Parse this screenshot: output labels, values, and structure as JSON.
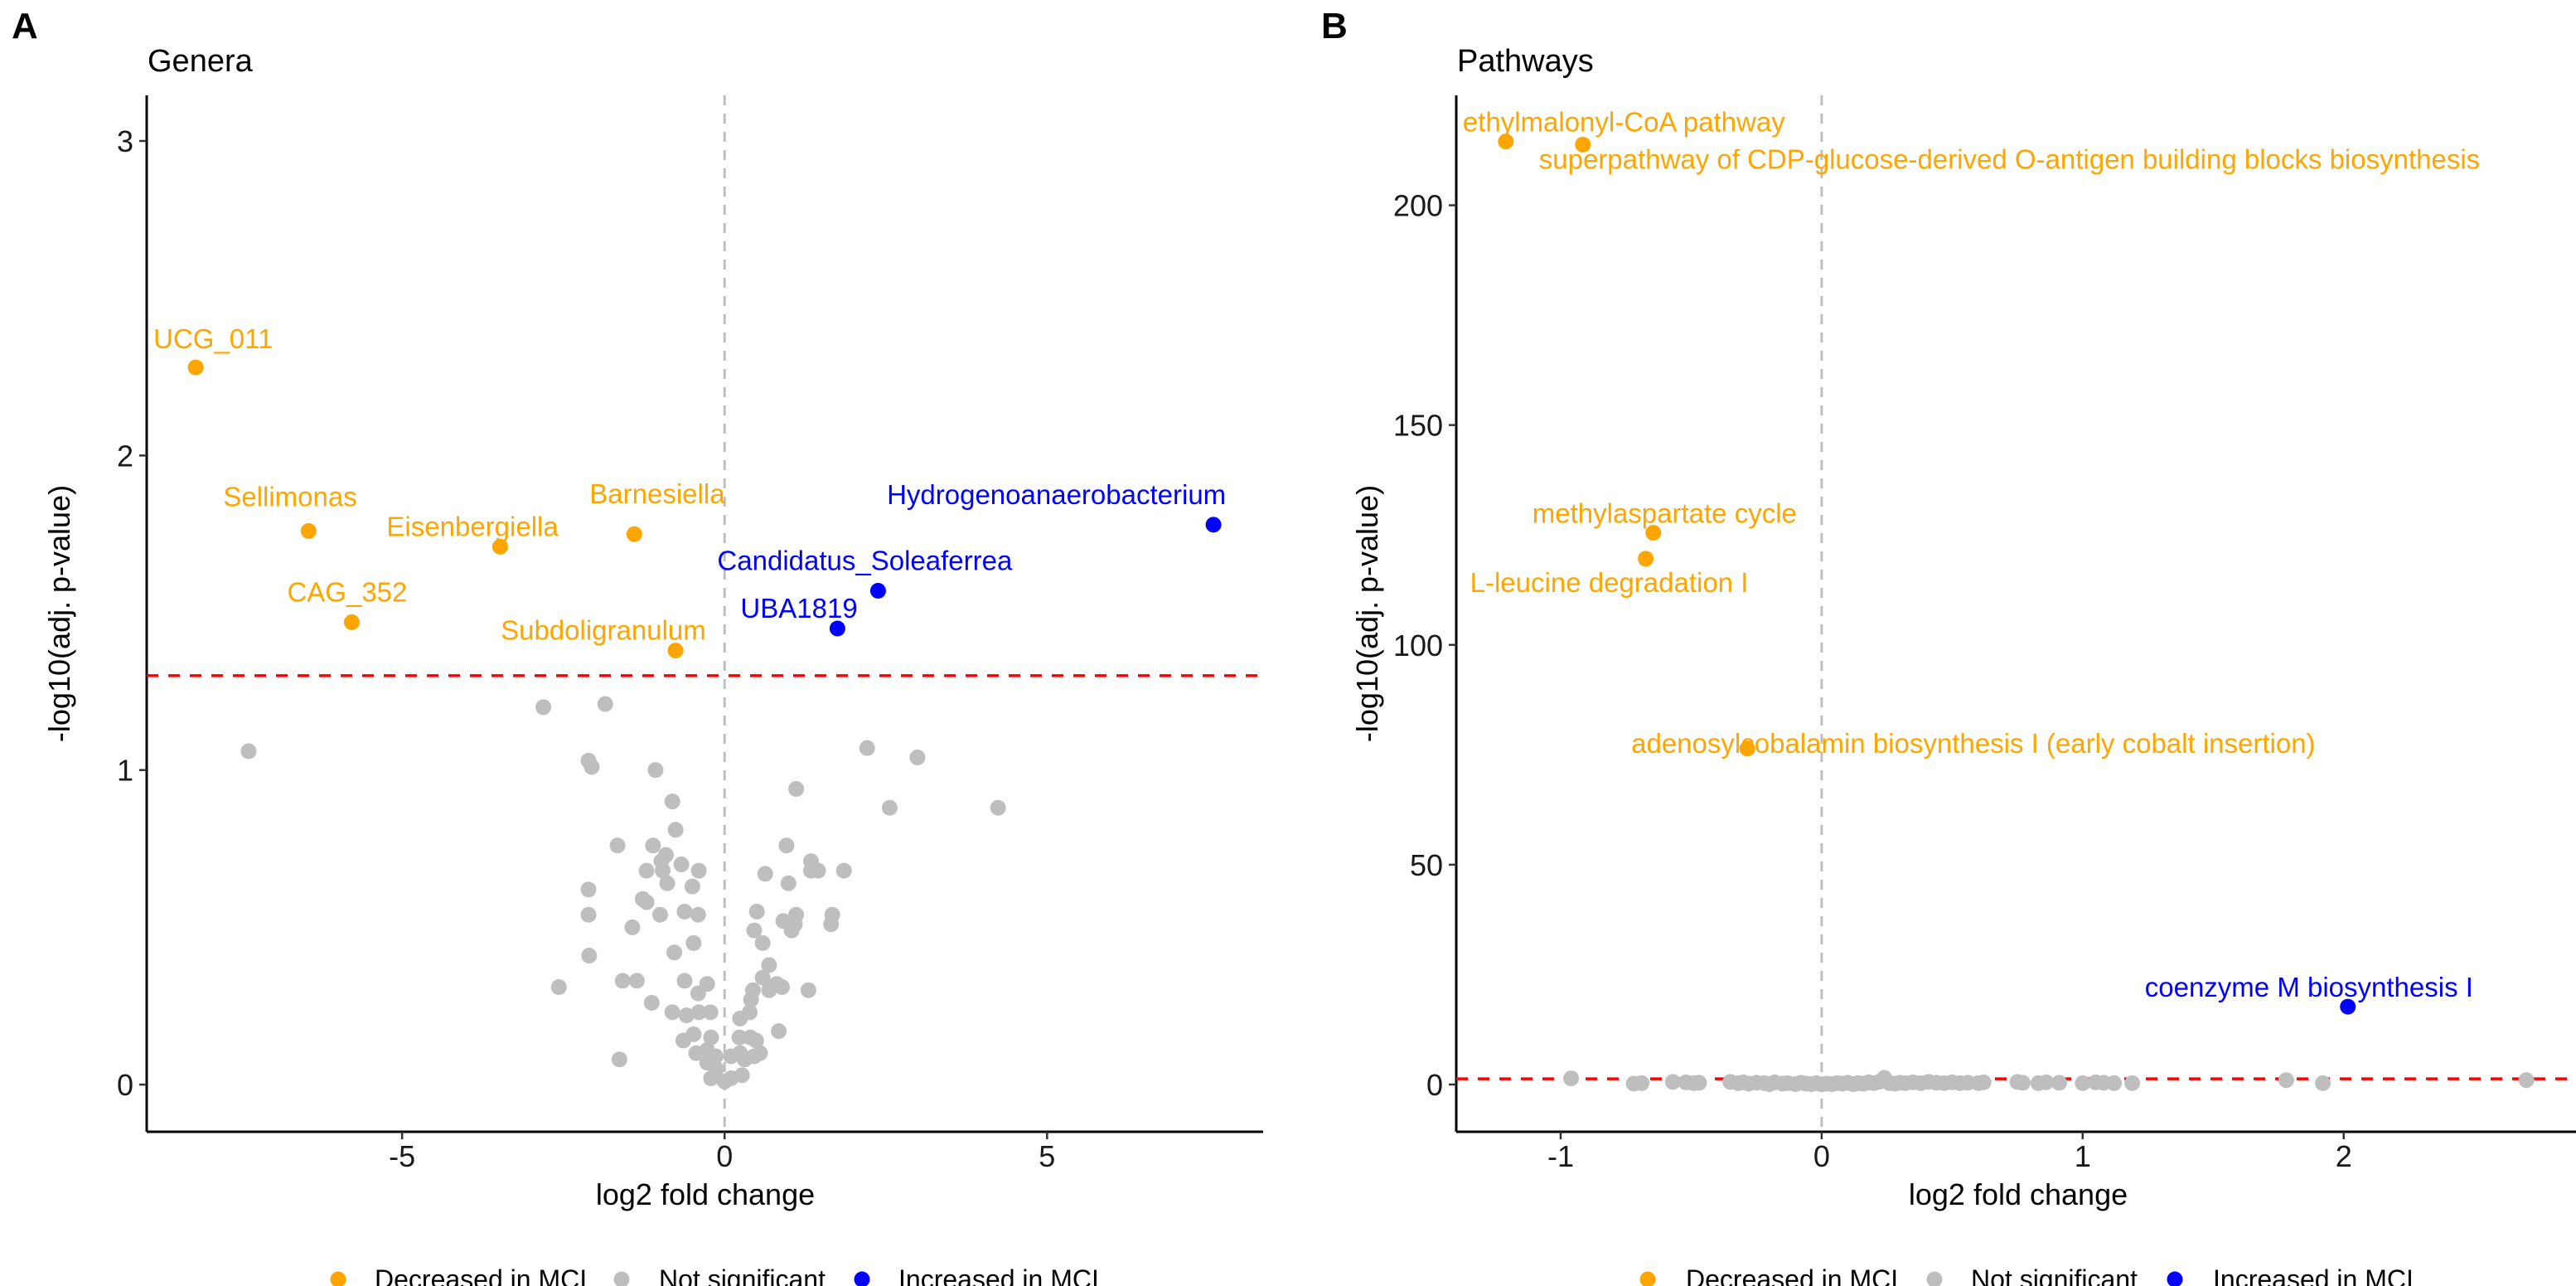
{
  "colors": {
    "decreased": "#FFA500",
    "not_significant": "#BEBEBE",
    "increased": "#0000FF",
    "threshold": "#FF0000",
    "zero_line": "#BEBEBE"
  },
  "chart_data": [
    {
      "type": "scatter",
      "tag": "A",
      "title": "Genera",
      "xlabel": "log2 fold change",
      "ylabel": "-log10(adj. p-value)",
      "xlim": [
        -8.96,
        8.35
      ],
      "ylim": [
        -0.15,
        3.145
      ],
      "xticks": [
        -5,
        0,
        5
      ],
      "yticks": [
        0,
        1,
        2,
        3
      ],
      "threshold_y": 1.3,
      "legend_position": "bottom",
      "legend": [
        "Decreased in MCI",
        "Not significant",
        "Increased in MCI"
      ],
      "labeled_points": [
        {
          "label": "UCG_011",
          "x": -8.2,
          "y": 2.28,
          "group": "decreased"
        },
        {
          "label": "Sellimonas",
          "x": -6.45,
          "y": 1.76,
          "group": "decreased"
        },
        {
          "label": "Eisenbergiella",
          "x": -3.48,
          "y": 1.71,
          "group": "decreased"
        },
        {
          "label": "CAG_352",
          "x": -5.78,
          "y": 1.47,
          "group": "decreased"
        },
        {
          "label": "Barnesiella",
          "x": -1.4,
          "y": 1.75,
          "group": "decreased"
        },
        {
          "label": "Subdoligranulum",
          "x": -0.76,
          "y": 1.38,
          "group": "decreased"
        },
        {
          "label": "Hydrogenoanaerobacterium",
          "x": 7.58,
          "y": 1.78,
          "group": "increased"
        },
        {
          "label": "Candidatus_Soleaferrea",
          "x": 2.38,
          "y": 1.57,
          "group": "increased"
        },
        {
          "label": "UBA1819",
          "x": 1.75,
          "y": 1.45,
          "group": "increased"
        }
      ],
      "ns_points": [
        [
          -7.38,
          1.06
        ],
        [
          -2.81,
          1.2
        ],
        [
          -1.85,
          1.21
        ],
        [
          -2.11,
          1.03
        ],
        [
          -2.06,
          1.01
        ],
        [
          -1.07,
          1.0
        ],
        [
          2.21,
          1.07
        ],
        [
          2.99,
          1.04
        ],
        [
          1.11,
          0.94
        ],
        [
          2.56,
          0.88
        ],
        [
          4.24,
          0.88
        ],
        [
          -0.81,
          0.9
        ],
        [
          -0.76,
          0.81
        ],
        [
          -1.66,
          0.76
        ],
        [
          -1.11,
          0.76
        ],
        [
          -0.91,
          0.73
        ],
        [
          -0.98,
          0.71
        ],
        [
          -1.21,
          0.68
        ],
        [
          -0.96,
          0.68
        ],
        [
          -0.67,
          0.7
        ],
        [
          -0.4,
          0.68
        ],
        [
          -0.89,
          0.64
        ],
        [
          -0.5,
          0.63
        ],
        [
          -2.11,
          0.62
        ],
        [
          -1.27,
          0.59
        ],
        [
          -1.21,
          0.58
        ],
        [
          -2.11,
          0.54
        ],
        [
          -1.0,
          0.54
        ],
        [
          -0.62,
          0.55
        ],
        [
          -0.41,
          0.54
        ],
        [
          -1.43,
          0.5
        ],
        [
          -0.48,
          0.45
        ],
        [
          -0.78,
          0.42
        ],
        [
          -2.1,
          0.41
        ],
        [
          -2.57,
          0.31
        ],
        [
          -1.58,
          0.33
        ],
        [
          -1.36,
          0.33
        ],
        [
          -0.62,
          0.33
        ],
        [
          -0.27,
          0.32
        ],
        [
          -0.41,
          0.29
        ],
        [
          -1.13,
          0.26
        ],
        [
          -0.81,
          0.23
        ],
        [
          -0.59,
          0.22
        ],
        [
          -0.4,
          0.23
        ],
        [
          -0.22,
          0.23
        ],
        [
          -0.48,
          0.16
        ],
        [
          -0.64,
          0.14
        ],
        [
          -0.21,
          0.15
        ],
        [
          -0.44,
          0.1
        ],
        [
          -0.27,
          0.11
        ],
        [
          -0.14,
          0.09
        ],
        [
          -0.27,
          0.07
        ],
        [
          -0.13,
          0.05
        ],
        [
          -0.21,
          0.02
        ],
        [
          0.0,
          0.01
        ],
        [
          0.1,
          0.02
        ],
        [
          0.27,
          0.03
        ],
        [
          -1.63,
          0.08
        ],
        [
          0.1,
          0.09
        ],
        [
          0.24,
          0.1
        ],
        [
          0.31,
          0.08
        ],
        [
          0.46,
          0.09
        ],
        [
          0.55,
          0.1
        ],
        [
          0.23,
          0.15
        ],
        [
          0.4,
          0.15
        ],
        [
          0.49,
          0.14
        ],
        [
          0.84,
          0.17
        ],
        [
          0.24,
          0.21
        ],
        [
          0.39,
          0.23
        ],
        [
          0.41,
          0.27
        ],
        [
          0.44,
          0.3
        ],
        [
          0.59,
          0.34
        ],
        [
          0.69,
          0.38
        ],
        [
          0.69,
          0.3
        ],
        [
          0.81,
          0.32
        ],
        [
          0.89,
          0.31
        ],
        [
          1.3,
          0.3
        ],
        [
          0.59,
          0.45
        ],
        [
          0.46,
          0.49
        ],
        [
          0.5,
          0.55
        ],
        [
          0.91,
          0.52
        ],
        [
          1.04,
          0.49
        ],
        [
          1.09,
          0.51
        ],
        [
          1.11,
          0.54
        ],
        [
          1.65,
          0.51
        ],
        [
          1.67,
          0.54
        ],
        [
          0.63,
          0.67
        ],
        [
          0.99,
          0.64
        ],
        [
          0.96,
          0.76
        ],
        [
          1.34,
          0.71
        ],
        [
          1.34,
          0.68
        ],
        [
          1.45,
          0.68
        ],
        [
          1.85,
          0.68
        ]
      ]
    },
    {
      "type": "scatter",
      "tag": "B",
      "title": "Pathways",
      "xlabel": "log2 fold change",
      "ylabel": "-log10(adj. p-value)",
      "xlim": [
        -1.4,
        2.89
      ],
      "ylim": [
        -10.75,
        225
      ],
      "xticks": [
        -1,
        0,
        1,
        2
      ],
      "yticks": [
        0,
        50,
        100,
        150,
        200
      ],
      "threshold_y": 1.3,
      "legend_position": "bottom",
      "legend": [
        "Decreased in MCI",
        "Not significant",
        "Increased in MCI"
      ],
      "labeled_points": [
        {
          "label": "ethylmalonyl-CoA pathway",
          "x": -1.21,
          "y": 214.5,
          "group": "decreased"
        },
        {
          "label": "superpathway of CDP-glucose-derived O-antigen building blocks biosynthesis",
          "x": -0.915,
          "y": 213.8,
          "group": "decreased"
        },
        {
          "label": "methylaspartate cycle",
          "x": -0.645,
          "y": 125.5,
          "group": "decreased"
        },
        {
          "label": "L-leucine degradation I",
          "x": -0.674,
          "y": 119.6,
          "group": "decreased"
        },
        {
          "label": "adenosylcobalamin biosynthesis I (early cobalt insertion)",
          "x": -0.285,
          "y": 76.4,
          "group": "decreased"
        },
        {
          "label": "coenzyme M biosynthesis I",
          "x": 2.016,
          "y": 17.7,
          "group": "increased"
        }
      ],
      "ns_points": [
        [
          -0.96,
          1.4
        ],
        [
          -0.72,
          0.2
        ],
        [
          -0.69,
          0.3
        ],
        [
          -0.57,
          0.6
        ],
        [
          -0.52,
          0.5
        ],
        [
          -0.49,
          0.3
        ],
        [
          -0.47,
          0.4
        ],
        [
          -0.35,
          0.6
        ],
        [
          -0.32,
          0.3
        ],
        [
          -0.3,
          0.5
        ],
        [
          -0.28,
          0.2
        ],
        [
          -0.25,
          0.4
        ],
        [
          -0.22,
          0.3
        ],
        [
          -0.2,
          0.1
        ],
        [
          -0.18,
          0.5
        ],
        [
          -0.15,
          0.2
        ],
        [
          -0.13,
          0.3
        ],
        [
          -0.1,
          0.1
        ],
        [
          -0.08,
          0.4
        ],
        [
          -0.06,
          0.2
        ],
        [
          -0.04,
          0.1
        ],
        [
          -0.02,
          0.3
        ],
        [
          0.0,
          0.05
        ],
        [
          0.02,
          0.2
        ],
        [
          0.04,
          0.1
        ],
        [
          0.06,
          0.3
        ],
        [
          0.08,
          0.2
        ],
        [
          0.1,
          0.4
        ],
        [
          0.12,
          0.1
        ],
        [
          0.14,
          0.3
        ],
        [
          0.16,
          0.2
        ],
        [
          0.18,
          0.5
        ],
        [
          0.2,
          0.3
        ],
        [
          0.22,
          0.6
        ],
        [
          0.24,
          1.5
        ],
        [
          0.26,
          0.3
        ],
        [
          0.28,
          0.2
        ],
        [
          0.3,
          0.4
        ],
        [
          0.32,
          0.3
        ],
        [
          0.35,
          0.5
        ],
        [
          0.38,
          0.3
        ],
        [
          0.41,
          0.6
        ],
        [
          0.44,
          0.4
        ],
        [
          0.47,
          0.3
        ],
        [
          0.5,
          0.5
        ],
        [
          0.53,
          0.3
        ],
        [
          0.56,
          0.4
        ],
        [
          0.6,
          0.3
        ],
        [
          0.62,
          0.5
        ],
        [
          0.75,
          0.6
        ],
        [
          0.77,
          0.4
        ],
        [
          0.83,
          0.3
        ],
        [
          0.86,
          0.5
        ],
        [
          0.91,
          0.4
        ],
        [
          1.0,
          0.3
        ],
        [
          1.05,
          0.5
        ],
        [
          1.08,
          0.4
        ],
        [
          1.12,
          0.3
        ],
        [
          1.19,
          0.3
        ],
        [
          1.78,
          1.0
        ],
        [
          1.92,
          0.3
        ],
        [
          2.7,
          1.0
        ]
      ]
    }
  ]
}
